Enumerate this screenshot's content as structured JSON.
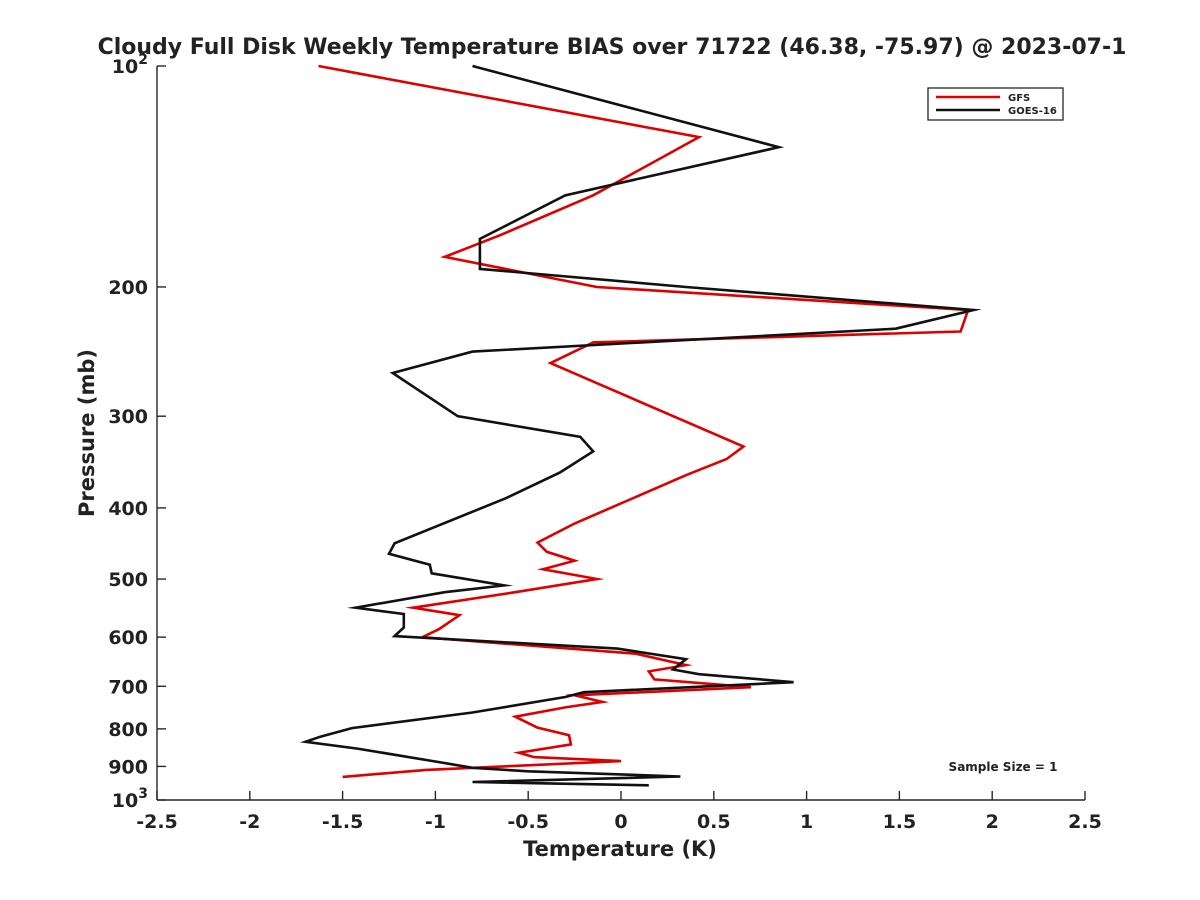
{
  "chart_data": {
    "type": "line",
    "title": "Cloudy Full Disk Weekly Temperature BIAS over 71722 (46.38, -75.97) @ 2023-07-1",
    "xlabel": "Temperature (K)",
    "ylabel": "Pressure (mb)",
    "xlim": [
      -2.5,
      2.5
    ],
    "ylim": [
      1000,
      100
    ],
    "y_scale": "log",
    "x_ticks": [
      "-2.5",
      "-2",
      "-1.5",
      "-1",
      "-0.5",
      "0",
      "0.5",
      "1",
      "1.5",
      "2",
      "2.5"
    ],
    "y_ticks": [
      {
        "value": 200,
        "label": "200"
      },
      {
        "value": 300,
        "label": "300"
      },
      {
        "value": 400,
        "label": "400"
      },
      {
        "value": 500,
        "label": "500"
      },
      {
        "value": 600,
        "label": "600"
      },
      {
        "value": 700,
        "label": "700"
      },
      {
        "value": 800,
        "label": "800"
      },
      {
        "value": 900,
        "label": "900"
      }
    ],
    "y_power_ticks": [
      {
        "value": 100,
        "base": "10",
        "exp": "2"
      },
      {
        "value": 1000,
        "base": "10",
        "exp": "3"
      }
    ],
    "legend_position": "top-right",
    "annotation": "Sample Size = 1",
    "series": [
      {
        "name": "GFS",
        "color": "#dd0000",
        "points": [
          [
            -1.63,
            100
          ],
          [
            0.42,
            125
          ],
          [
            -0.15,
            150
          ],
          [
            -0.65,
            170
          ],
          [
            -0.95,
            182
          ],
          [
            -0.13,
            200
          ],
          [
            1.87,
            215
          ],
          [
            1.83,
            230
          ],
          [
            -0.15,
            238
          ],
          [
            -0.38,
            254
          ],
          [
            0.66,
            330
          ],
          [
            0.57,
            343
          ],
          [
            0.35,
            361
          ],
          [
            -0.25,
            420
          ],
          [
            -0.45,
            446
          ],
          [
            -0.4,
            459
          ],
          [
            -0.25,
            472
          ],
          [
            -0.42,
            485
          ],
          [
            -0.13,
            500
          ],
          [
            -0.57,
            521
          ],
          [
            -1.12,
            547
          ],
          [
            -0.87,
            560
          ],
          [
            -0.98,
            585
          ],
          [
            -1.07,
            600
          ],
          [
            0.08,
            632
          ],
          [
            0.35,
            655
          ],
          [
            0.15,
            668
          ],
          [
            0.18,
            685
          ],
          [
            0.7,
            702
          ],
          [
            -0.25,
            720
          ],
          [
            -0.1,
            735
          ],
          [
            -0.3,
            748
          ],
          [
            -0.57,
            770
          ],
          [
            -0.45,
            797
          ],
          [
            -0.28,
            816
          ],
          [
            -0.27,
            840
          ],
          [
            -0.55,
            862
          ],
          [
            -0.47,
            874
          ],
          [
            0.0,
            885
          ],
          [
            -1.05,
            910
          ],
          [
            -1.5,
            930
          ]
        ]
      },
      {
        "name": "GOES-16",
        "color": "#111111",
        "points": [
          [
            -0.8,
            100
          ],
          [
            0.85,
            129
          ],
          [
            -0.3,
            150
          ],
          [
            -0.76,
            172
          ],
          [
            -0.76,
            189
          ],
          [
            0.35,
            200
          ],
          [
            1.9,
            215
          ],
          [
            1.48,
            228
          ],
          [
            -0.8,
            245
          ],
          [
            -1.23,
            262
          ],
          [
            -0.88,
            300
          ],
          [
            -0.22,
            320
          ],
          [
            -0.15,
            335
          ],
          [
            -0.33,
            358
          ],
          [
            -0.62,
            388
          ],
          [
            -1.22,
            447
          ],
          [
            -1.25,
            462
          ],
          [
            -1.03,
            478
          ],
          [
            -1.02,
            491
          ],
          [
            -0.63,
            510
          ],
          [
            -0.95,
            521
          ],
          [
            -1.43,
            547
          ],
          [
            -1.17,
            558
          ],
          [
            -1.17,
            582
          ],
          [
            -1.22,
            598
          ],
          [
            -0.02,
            622
          ],
          [
            0.35,
            643
          ],
          [
            0.28,
            664
          ],
          [
            0.42,
            674
          ],
          [
            0.93,
            691
          ],
          [
            -0.2,
            713
          ],
          [
            -0.3,
            724
          ],
          [
            -0.8,
            760
          ],
          [
            -1.45,
            798
          ],
          [
            -1.62,
            820
          ],
          [
            -1.7,
            833
          ],
          [
            -1.42,
            851
          ],
          [
            -0.98,
            888
          ],
          [
            -0.8,
            904
          ],
          [
            -0.5,
            914
          ],
          [
            0.32,
            929
          ],
          [
            -0.8,
            945
          ],
          [
            0.15,
            955
          ]
        ]
      }
    ]
  }
}
